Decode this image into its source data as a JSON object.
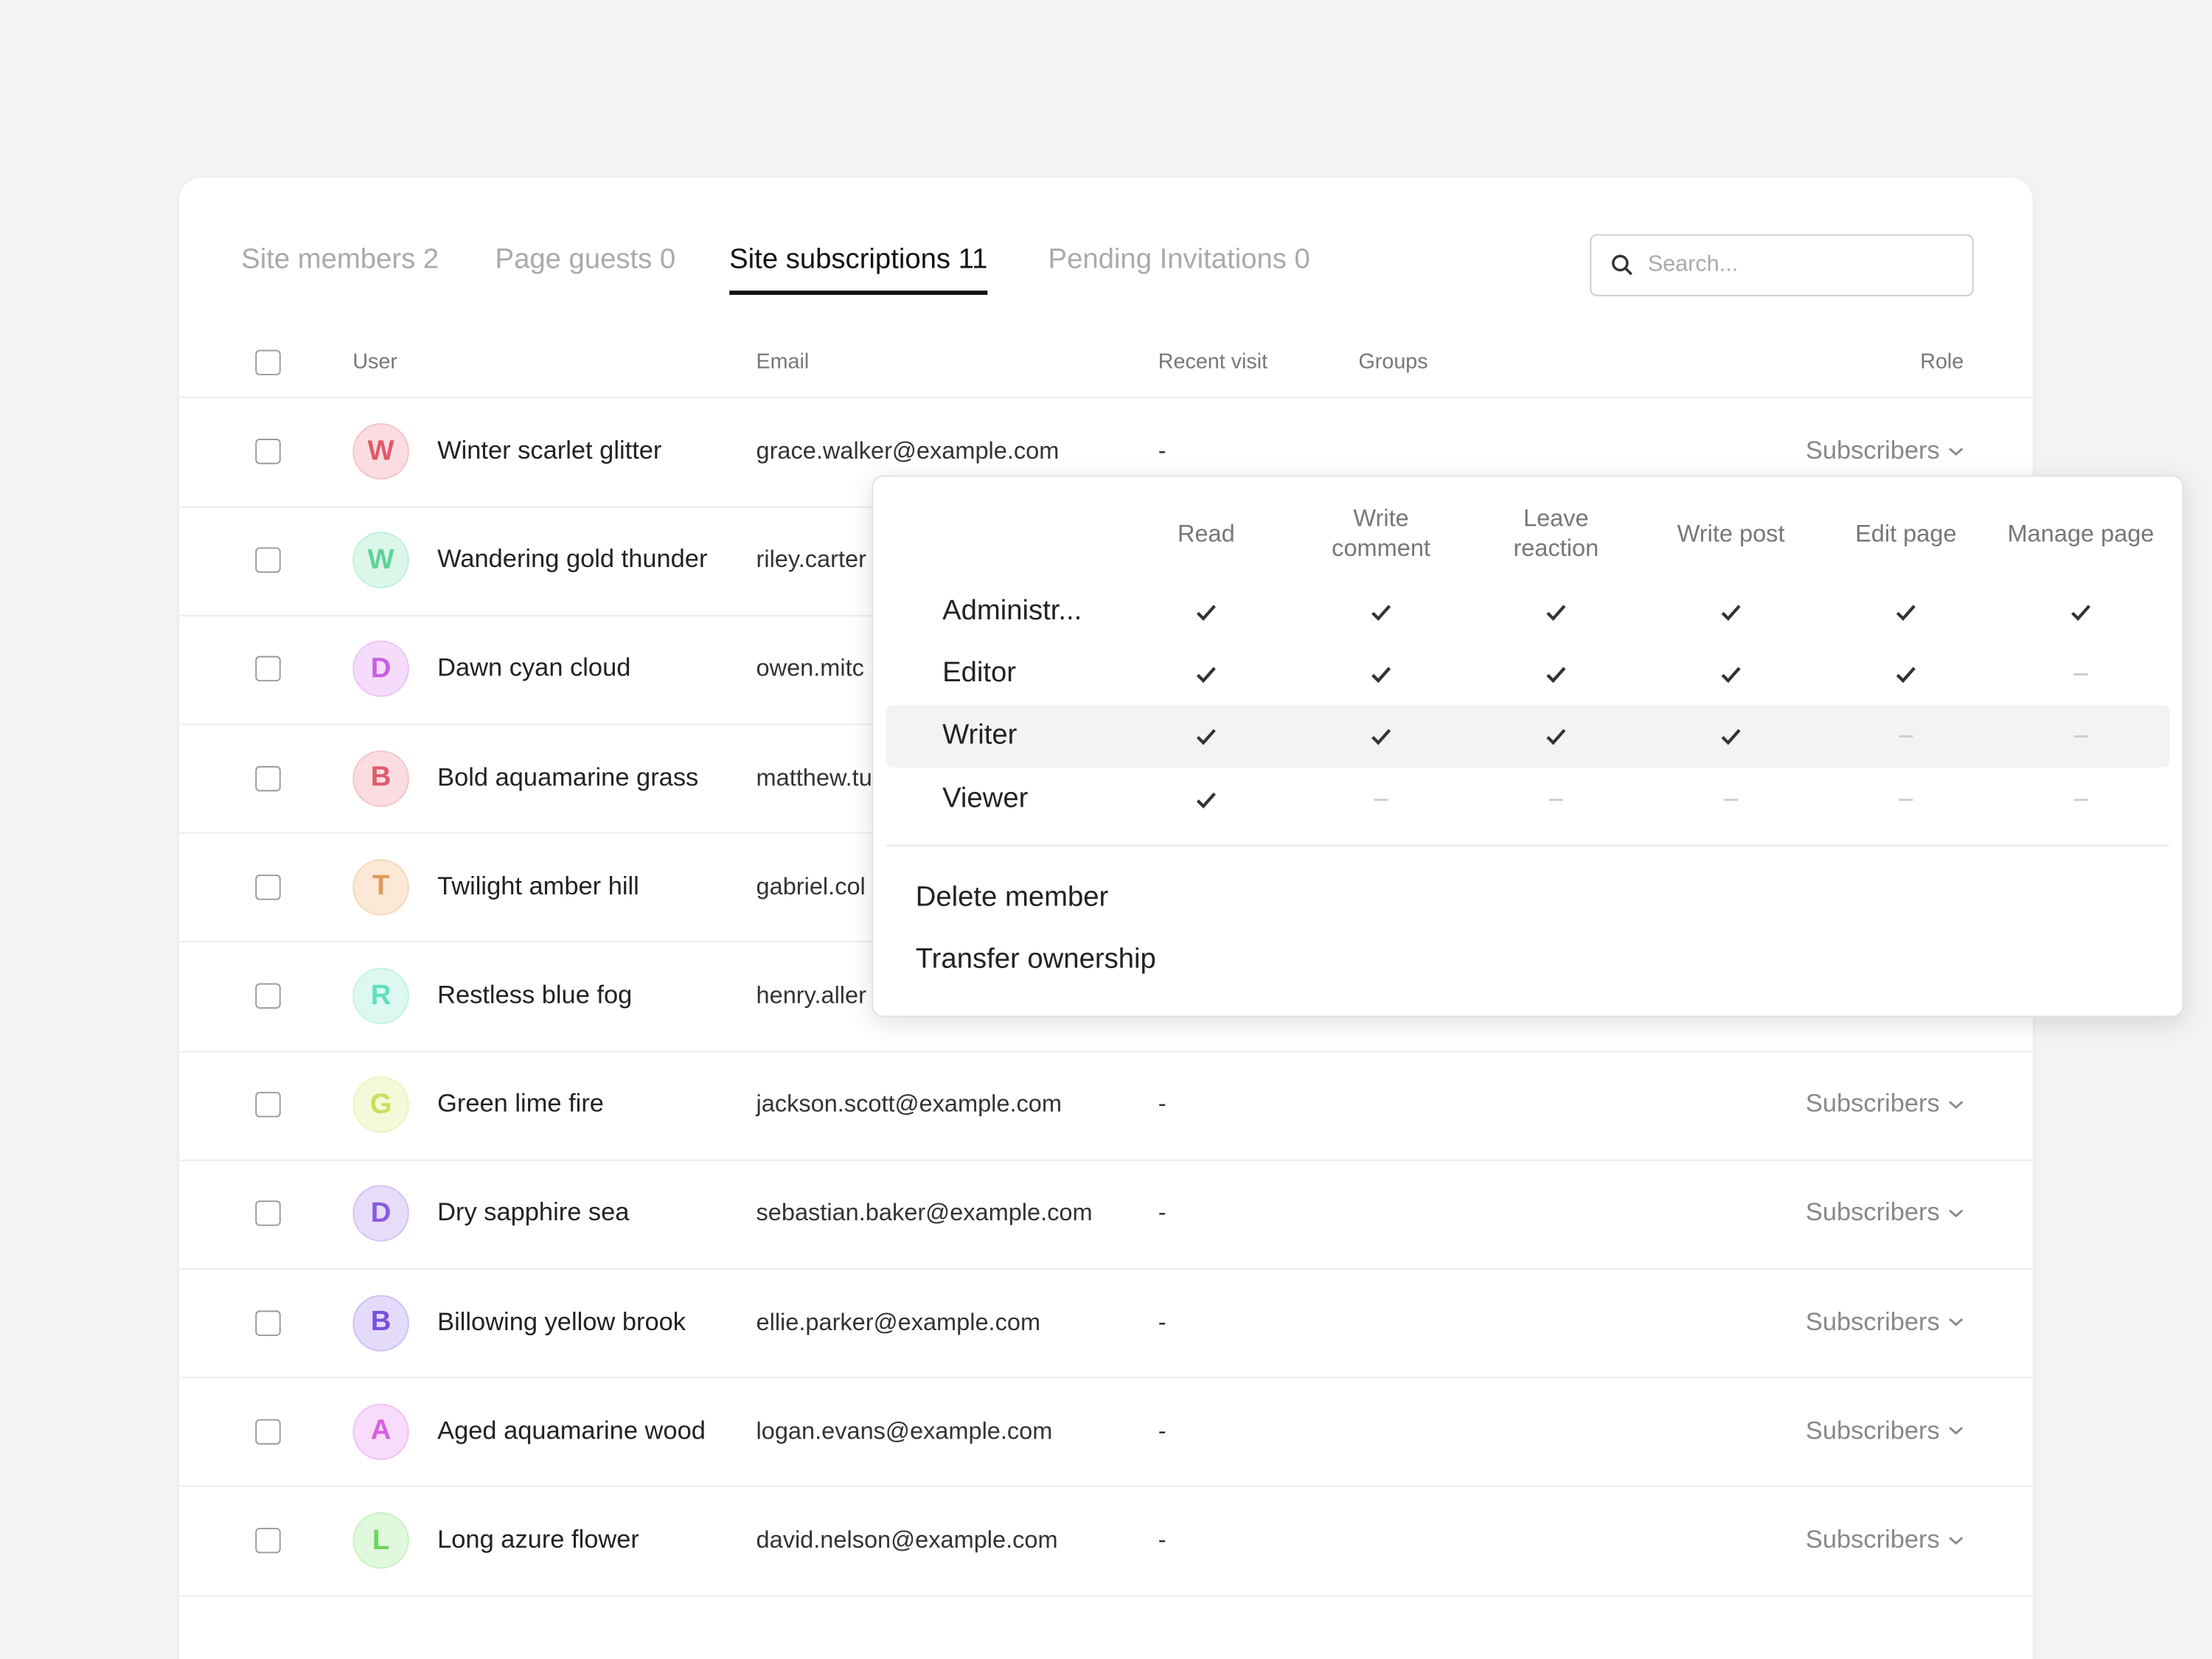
{
  "tabs": [
    {
      "label": "Site members 2",
      "active": false
    },
    {
      "label": "Page guests 0",
      "active": false
    },
    {
      "label": "Site subscriptions 11",
      "active": true
    },
    {
      "label": "Pending Invitations 0",
      "active": false
    }
  ],
  "search": {
    "placeholder": "Search..."
  },
  "table": {
    "headers": {
      "user": "User",
      "email": "Email",
      "recent": "Recent visit",
      "groups": "Groups",
      "role": "Role"
    },
    "rows": [
      {
        "initial": "W",
        "color": "#e05a6a",
        "bg": "#fbdde1",
        "name": "Winter scarlet glitter",
        "email": "grace.walker@example.com",
        "recent": "-",
        "role": "Subscribers"
      },
      {
        "initial": "W",
        "color": "#5fd49a",
        "bg": "#dcf7e9",
        "name": "Wandering gold thunder",
        "email": "riley.carter"
      },
      {
        "initial": "D",
        "color": "#c65fe0",
        "bg": "#f5dcfb",
        "name": "Dawn cyan cloud",
        "email": "owen.mitc"
      },
      {
        "initial": "B",
        "color": "#e05a6a",
        "bg": "#fbdde1",
        "name": "Bold aquamarine grass",
        "email": "matthew.tu"
      },
      {
        "initial": "T",
        "color": "#e09a5a",
        "bg": "#fbe8d6",
        "name": "Twilight amber hill",
        "email": "gabriel.col"
      },
      {
        "initial": "R",
        "color": "#5fe0c0",
        "bg": "#dcf8f1",
        "name": "Restless blue fog",
        "email": "henry.aller"
      },
      {
        "initial": "G",
        "color": "#c8e05a",
        "bg": "#f3f9d9",
        "name": "Green lime fire",
        "email": "jackson.scott@example.com",
        "recent": "-",
        "role": "Subscribers"
      },
      {
        "initial": "D",
        "color": "#8a5ae0",
        "bg": "#e7ddfb",
        "name": "Dry sapphire sea",
        "email": "sebastian.baker@example.com",
        "recent": "-",
        "role": "Subscribers"
      },
      {
        "initial": "B",
        "color": "#7a4fe0",
        "bg": "#e4dbfb",
        "name": "Billowing yellow brook",
        "email": "ellie.parker@example.com",
        "recent": "-",
        "role": "Subscribers"
      },
      {
        "initial": "A",
        "color": "#d65fe0",
        "bg": "#f7dcfb",
        "name": "Aged aquamarine wood",
        "email": "logan.evans@example.com",
        "recent": "-",
        "role": "Subscribers"
      },
      {
        "initial": "L",
        "color": "#6ad65a",
        "bg": "#e0f8dc",
        "name": "Long azure flower",
        "email": "david.nelson@example.com",
        "recent": "-",
        "role": "Subscribers"
      }
    ]
  },
  "popup": {
    "columns": [
      "Read",
      "Write comment",
      "Leave reaction",
      "Write post",
      "Edit page",
      "Manage page"
    ],
    "roles": [
      {
        "name": "Administr...",
        "perms": [
          true,
          true,
          true,
          true,
          true,
          true
        ]
      },
      {
        "name": "Editor",
        "perms": [
          true,
          true,
          true,
          true,
          true,
          false
        ]
      },
      {
        "name": "Writer",
        "perms": [
          true,
          true,
          true,
          true,
          false,
          false
        ],
        "highlighted": true
      },
      {
        "name": "Viewer",
        "perms": [
          true,
          false,
          false,
          false,
          false,
          false
        ]
      }
    ],
    "actions": [
      "Delete member",
      "Transfer ownership"
    ]
  }
}
